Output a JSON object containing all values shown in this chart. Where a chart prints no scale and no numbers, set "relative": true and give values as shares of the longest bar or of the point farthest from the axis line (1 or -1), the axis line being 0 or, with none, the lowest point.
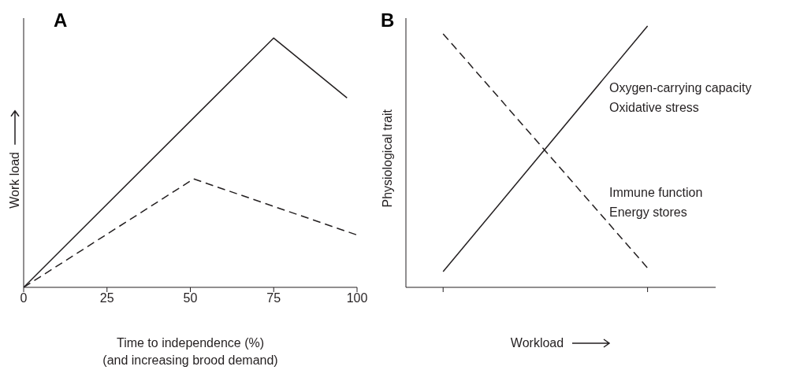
{
  "chart_data": [
    {
      "type": "line",
      "title": "A",
      "xlabel": "Time to independence (%)\n(and increasing brood demand)",
      "ylabel": "Work load",
      "relative": true,
      "xlim": [
        0,
        100
      ],
      "xticks": [
        0,
        25,
        50,
        75,
        100
      ],
      "series": [
        {
          "x": [
            0,
            75,
            97
          ],
          "values": [
            0,
            1,
            0.76
          ],
          "color": "#231f20",
          "line_style": "solid"
        },
        {
          "x": [
            0,
            51,
            100
          ],
          "values": [
            0,
            0.435,
            0.21
          ],
          "color": "#231f20",
          "line_style": "dashed"
        }
      ]
    },
    {
      "type": "line",
      "title": "B",
      "xlabel": "Workload",
      "ylabel": "Physiological trait",
      "relative": true,
      "categories": [
        null,
        null
      ],
      "series": [
        {
          "values": [
            0.06,
            1
          ],
          "color": "#231f20",
          "line_style": "solid"
        },
        {
          "values": [
            0.97,
            0.074
          ],
          "color": "#231f20",
          "line_style": "dashed"
        }
      ],
      "annotations": [
        "Oxygen-carrying capacity",
        "Oxidative stress",
        "Immune function",
        "Energy stores"
      ]
    }
  ]
}
